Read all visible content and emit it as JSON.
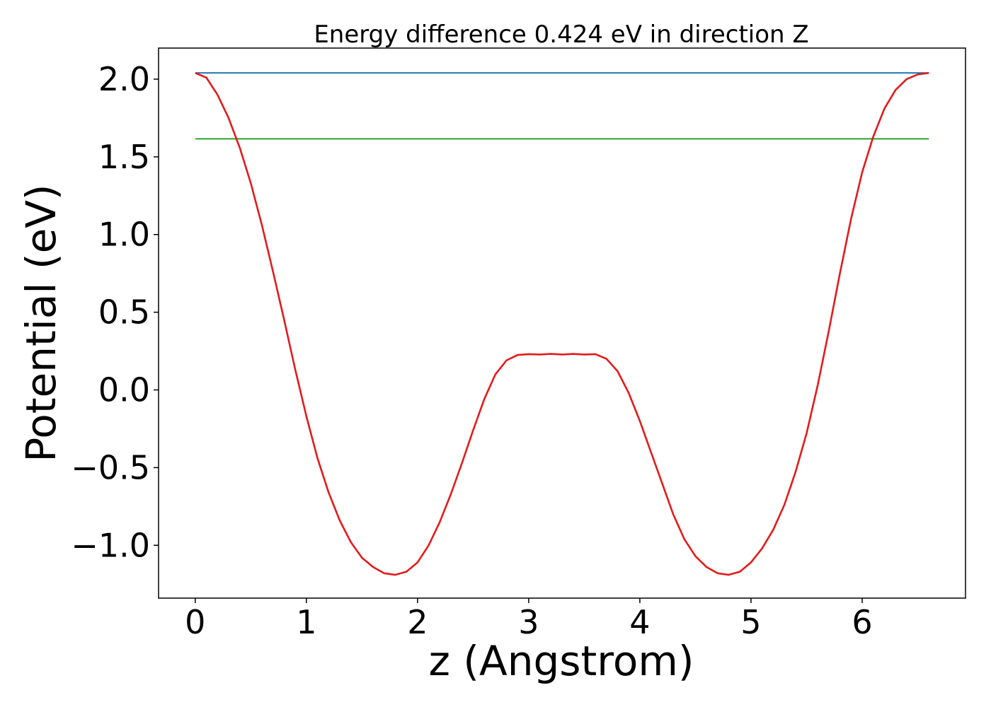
{
  "chart_data": {
    "type": "line",
    "title": "Energy difference 0.424 eV in direction Z",
    "xlabel": "z (Angstrom)",
    "ylabel": "Potential (eV)",
    "xlim": [
      -0.33,
      6.93
    ],
    "ylim": [
      -1.34,
      2.2
    ],
    "x_ticks": [
      0,
      1,
      2,
      3,
      4,
      5,
      6
    ],
    "x_tick_labels": [
      "0",
      "1",
      "2",
      "3",
      "4",
      "5",
      "6"
    ],
    "y_ticks": [
      2.0,
      1.5,
      1.0,
      0.5,
      0.0,
      -0.5,
      -1.0
    ],
    "y_tick_labels": [
      "2.0",
      "1.5",
      "1.0",
      "0.5",
      "0.0",
      "−0.5",
      "−1.0"
    ],
    "grid": false,
    "series": [
      {
        "color": "#1f77b4",
        "x": [
          0.0,
          6.6
        ],
        "y": [
          2.04,
          2.04
        ]
      },
      {
        "color": "#2ca02c",
        "x": [
          0.0,
          6.6
        ],
        "y": [
          1.616,
          1.616
        ]
      },
      {
        "color": "#e41a1c",
        "x": [
          0.0,
          0.1,
          0.2,
          0.3,
          0.4,
          0.5,
          0.6,
          0.7,
          0.8,
          0.9,
          1.0,
          1.1,
          1.2,
          1.3,
          1.4,
          1.5,
          1.6,
          1.7,
          1.8,
          1.9,
          2.0,
          2.1,
          2.2,
          2.3,
          2.4,
          2.5,
          2.6,
          2.7,
          2.8,
          2.9,
          3.0,
          3.1,
          3.2,
          3.3,
          3.4,
          3.5,
          3.6,
          3.7,
          3.8,
          3.9,
          4.0,
          4.1,
          4.2,
          4.3,
          4.4,
          4.5,
          4.6,
          4.7,
          4.8,
          4.9,
          5.0,
          5.1,
          5.2,
          5.3,
          5.4,
          5.5,
          5.6,
          5.7,
          5.8,
          5.9,
          6.0,
          6.1,
          6.2,
          6.3,
          6.4,
          6.5,
          6.6
        ],
        "y": [
          2.04,
          2.01,
          1.9,
          1.75,
          1.56,
          1.33,
          1.06,
          0.76,
          0.45,
          0.13,
          -0.17,
          -0.44,
          -0.66,
          -0.84,
          -0.98,
          -1.08,
          -1.14,
          -1.18,
          -1.19,
          -1.17,
          -1.11,
          -1.0,
          -0.85,
          -0.67,
          -0.47,
          -0.26,
          -0.06,
          0.1,
          0.19,
          0.225,
          0.23,
          0.228,
          0.232,
          0.228,
          0.232,
          0.228,
          0.23,
          0.2,
          0.12,
          -0.02,
          -0.2,
          -0.4,
          -0.6,
          -0.8,
          -0.96,
          -1.07,
          -1.14,
          -1.18,
          -1.19,
          -1.17,
          -1.11,
          -1.02,
          -0.9,
          -0.74,
          -0.53,
          -0.28,
          0.03,
          0.38,
          0.75,
          1.1,
          1.4,
          1.63,
          1.81,
          1.93,
          2.0,
          2.03,
          2.04
        ]
      }
    ]
  }
}
